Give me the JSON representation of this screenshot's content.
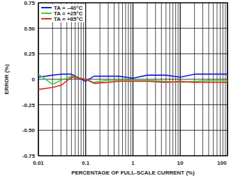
{
  "chart_data": {
    "type": "line",
    "x_label": "PERCENTAGE OF FULL-SCALE CURRENT (%)",
    "y_label": "ERROR (%)",
    "x": [
      0.01,
      0.02,
      0.03,
      0.05,
      0.1,
      0.15,
      0.3,
      0.5,
      1,
      2,
      5,
      10,
      20,
      50,
      100
    ],
    "series": [
      {
        "name": "TA = –40°C",
        "color": "#1a1ad6",
        "values": [
          0.02,
          0.04,
          0.05,
          0.05,
          -0.02,
          0.03,
          0.03,
          0.03,
          0.01,
          0.04,
          0.04,
          0.02,
          0.05,
          0.05,
          0.05
        ]
      },
      {
        "name": "TA = +25°C",
        "color": "#33d633",
        "values": [
          0.05,
          -0.05,
          -0.01,
          0.03,
          0.0,
          -0.03,
          -0.01,
          -0.01,
          -0.01,
          -0.01,
          -0.02,
          -0.03,
          -0.02,
          -0.01,
          -0.01
        ]
      },
      {
        "name": "TA = +85°C",
        "color": "#e82020",
        "values": [
          -0.1,
          -0.08,
          -0.06,
          0.02,
          0.0,
          -0.04,
          -0.03,
          -0.02,
          -0.02,
          -0.02,
          -0.03,
          -0.02,
          -0.03,
          -0.03,
          -0.03
        ]
      }
    ],
    "xlim": [
      0.01,
      100
    ],
    "ylim": [
      -0.75,
      0.75
    ],
    "xticks": [
      0.01,
      0.1,
      1,
      10,
      100
    ],
    "yticks": [
      -0.75,
      {
        "value": -0.5,
        "label": "-0.50"
      },
      -0.25,
      0,
      0.25,
      {
        "value": 0.5,
        "label": "0.50"
      },
      0.75
    ],
    "log": "x",
    "grid": true,
    "legend": "top-left"
  }
}
